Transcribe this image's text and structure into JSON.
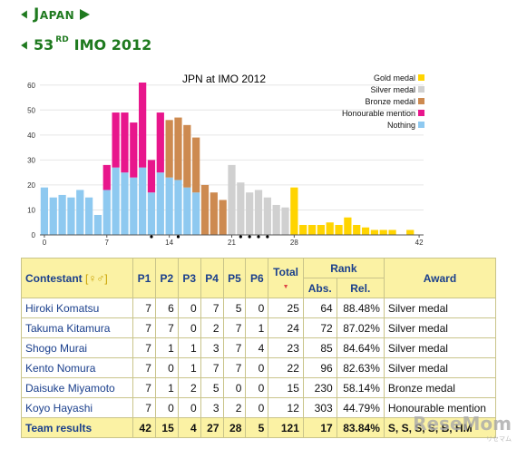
{
  "header": {
    "country": "Japan",
    "imo_title": "53",
    "imo_sup": "RD",
    "imo_rest": "IMO 2012"
  },
  "chart_data": {
    "type": "bar",
    "title": "JPN at IMO 2012",
    "ylim": [
      0,
      65
    ],
    "yticks": [
      0,
      10,
      20,
      30,
      40,
      50,
      60
    ],
    "xticks": [
      0,
      7,
      14,
      21,
      28,
      42
    ],
    "legend_position": "top-right",
    "legend": [
      {
        "name": "Gold medal",
        "color": "#ffd400"
      },
      {
        "name": "Silver medal",
        "color": "#d0d0d0"
      },
      {
        "name": "Bronze medal",
        "color": "#cd8a50"
      },
      {
        "name": "Honourable mention",
        "color": "#e8168c"
      },
      {
        "name": "Nothing",
        "color": "#8ec9f0"
      }
    ],
    "x": [
      0,
      1,
      2,
      3,
      4,
      5,
      6,
      7,
      8,
      9,
      10,
      11,
      12,
      13,
      14,
      15,
      16,
      17,
      18,
      19,
      20,
      21,
      22,
      23,
      24,
      25,
      26,
      27,
      28,
      29,
      30,
      31,
      32,
      33,
      34,
      35,
      36,
      37,
      38,
      39,
      40,
      41,
      42
    ],
    "nothing": [
      19,
      15,
      16,
      15,
      18,
      15,
      8,
      18,
      27,
      25,
      23,
      27,
      17,
      25,
      23,
      22,
      19,
      17,
      0,
      0,
      0,
      0,
      0,
      0,
      0,
      0,
      0,
      0,
      0,
      0,
      0,
      0,
      0,
      0,
      0,
      0,
      0,
      0,
      0,
      0,
      0,
      0,
      0
    ],
    "honourable": [
      0,
      0,
      0,
      0,
      0,
      0,
      0,
      10,
      22,
      24,
      22,
      34,
      13,
      24,
      0,
      0,
      0,
      0,
      0,
      0,
      0,
      0,
      0,
      0,
      0,
      0,
      0,
      0,
      0,
      0,
      0,
      0,
      0,
      0,
      0,
      0,
      0,
      0,
      0,
      0,
      0,
      0,
      0
    ],
    "bronze": [
      0,
      0,
      0,
      0,
      0,
      0,
      0,
      0,
      0,
      0,
      0,
      0,
      0,
      0,
      23,
      25,
      25,
      22,
      20,
      17,
      14,
      0,
      0,
      0,
      0,
      0,
      0,
      0,
      0,
      0,
      0,
      0,
      0,
      0,
      0,
      0,
      0,
      0,
      0,
      0,
      0,
      0,
      0
    ],
    "silver": [
      0,
      0,
      0,
      0,
      0,
      0,
      0,
      0,
      0,
      0,
      0,
      0,
      0,
      0,
      0,
      0,
      0,
      0,
      0,
      0,
      0,
      28,
      21,
      17,
      18,
      15,
      12,
      11,
      0,
      0,
      0,
      0,
      0,
      0,
      0,
      0,
      0,
      0,
      0,
      0,
      0,
      0,
      0
    ],
    "gold": [
      0,
      0,
      0,
      0,
      0,
      0,
      0,
      0,
      0,
      0,
      0,
      0,
      0,
      0,
      0,
      0,
      0,
      0,
      0,
      0,
      0,
      0,
      0,
      0,
      0,
      0,
      0,
      0,
      19,
      4,
      4,
      4,
      5,
      4,
      7,
      4,
      3,
      2,
      2,
      2,
      0,
      2,
      0
    ],
    "team_markers": [
      12,
      15,
      22,
      23,
      24,
      25
    ]
  },
  "table": {
    "headers": {
      "contestant": "Contestant",
      "sex": "[♀♂]",
      "p1": "P1",
      "p2": "P2",
      "p3": "P3",
      "p4": "P4",
      "p5": "P5",
      "p6": "P6",
      "total": "Total",
      "rank": "Rank",
      "abs": "Abs.",
      "rel": "Rel.",
      "award": "Award"
    },
    "rows": [
      {
        "name": "Hiroki Komatsu",
        "p": [
          "7",
          "6",
          "0",
          "7",
          "5",
          "0"
        ],
        "total": "25",
        "abs": "64",
        "rel": "88.48%",
        "award": "Silver medal"
      },
      {
        "name": "Takuma Kitamura",
        "p": [
          "7",
          "7",
          "0",
          "2",
          "7",
          "1"
        ],
        "total": "24",
        "abs": "72",
        "rel": "87.02%",
        "award": "Silver medal"
      },
      {
        "name": "Shogo Murai",
        "p": [
          "7",
          "1",
          "1",
          "3",
          "7",
          "4"
        ],
        "total": "23",
        "abs": "85",
        "rel": "84.64%",
        "award": "Silver medal"
      },
      {
        "name": "Kento Nomura",
        "p": [
          "7",
          "0",
          "1",
          "7",
          "7",
          "0"
        ],
        "total": "22",
        "abs": "96",
        "rel": "82.63%",
        "award": "Silver medal"
      },
      {
        "name": "Daisuke Miyamoto",
        "p": [
          "7",
          "1",
          "2",
          "5",
          "0",
          "0"
        ],
        "total": "15",
        "abs": "230",
        "rel": "58.14%",
        "award": "Bronze medal"
      },
      {
        "name": "Koyo Hayashi",
        "p": [
          "7",
          "0",
          "0",
          "3",
          "2",
          "0"
        ],
        "total": "12",
        "abs": "303",
        "rel": "44.79%",
        "award": "Honourable mention"
      }
    ],
    "team": {
      "label": "Team results",
      "p": [
        "42",
        "15",
        "4",
        "27",
        "28",
        "5"
      ],
      "total": "121",
      "abs": "17",
      "rel": "83.84%",
      "award": "S, S, S, S, B, HM"
    }
  },
  "watermark": {
    "text": "ReseMom",
    "small": "リセマム"
  }
}
